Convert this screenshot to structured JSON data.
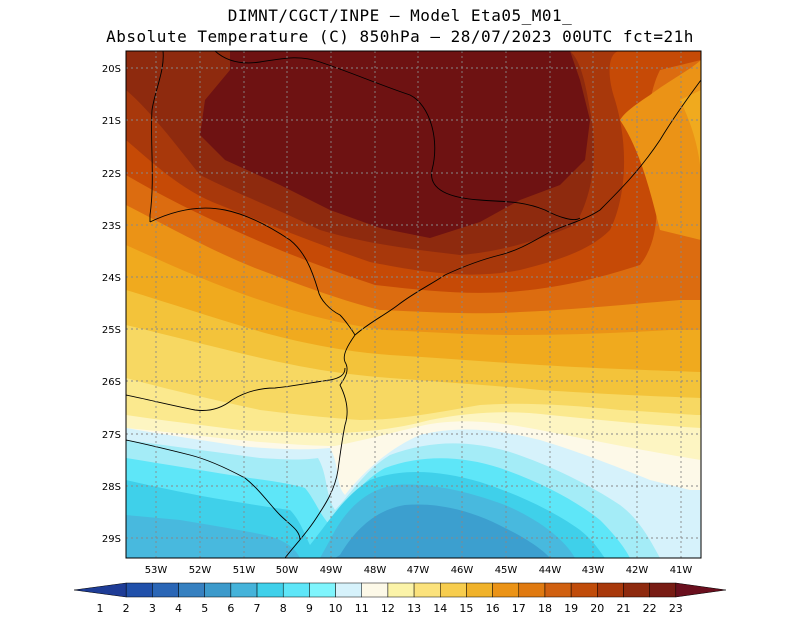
{
  "title": {
    "line1": "DIMNT/CGCT/INPE –   Model Eta05_M01_",
    "line2": "Absolute Temperature (C) 850hPa –  28/07/2023 00UTC fct=21h"
  },
  "map": {
    "lat_labels": [
      "20S",
      "21S",
      "22S",
      "23S",
      "24S",
      "25S",
      "26S",
      "27S",
      "28S",
      "29S"
    ],
    "lon_labels": [
      "53W",
      "52W",
      "51W",
      "50W",
      "49W",
      "48W",
      "47W",
      "46W",
      "45W",
      "44W",
      "43W",
      "42W",
      "41W"
    ],
    "bands": [
      {
        "level": "23",
        "color": "#6e1212"
      },
      {
        "level": "21",
        "color": "#8e2a0e"
      },
      {
        "level": "20",
        "color": "#a8380b"
      },
      {
        "level": "19",
        "color": "#c64a06"
      },
      {
        "level": "18",
        "color": "#dc6c10"
      },
      {
        "level": "17",
        "color": "#eb9316"
      },
      {
        "level": "16",
        "color": "#f0aa1e"
      },
      {
        "level": "15",
        "color": "#f3c33a"
      },
      {
        "level": "14",
        "color": "#f7d862"
      },
      {
        "level": "13",
        "color": "#fbe98e"
      },
      {
        "level": "12",
        "color": "#fdf5c2"
      },
      {
        "level": "11",
        "color": "#fdf9e8"
      },
      {
        "level": "10",
        "color": "#d6f2fb"
      },
      {
        "level": "9",
        "color": "#a4ecf7"
      },
      {
        "level": "8",
        "color": "#5ee6f8"
      },
      {
        "level": "7",
        "color": "#3fd0ea"
      },
      {
        "level": "6",
        "color": "#48b9de"
      },
      {
        "level": "5",
        "color": "#3c9fcf"
      }
    ]
  },
  "colorbar": {
    "labels": [
      "1",
      "2",
      "3",
      "4",
      "5",
      "6",
      "7",
      "8",
      "9",
      "10",
      "11",
      "12",
      "13",
      "14",
      "15",
      "16",
      "17",
      "18",
      "19",
      "20",
      "21",
      "22",
      "23"
    ],
    "colors": [
      "#1e3c96",
      "#2050aa",
      "#2a66b6",
      "#3680c0",
      "#3c9acb",
      "#45b3da",
      "#3fd0ea",
      "#5ee6f8",
      "#7ff5fd",
      "#d6f2fb",
      "#fdf9e8",
      "#fbf3a8",
      "#fbe27c",
      "#f7cd4e",
      "#f0b22a",
      "#eb9316",
      "#e07a10",
      "#d06010",
      "#c04c0a",
      "#a8380b",
      "#8e2a0e",
      "#781c14",
      "#6a0f1e"
    ]
  }
}
